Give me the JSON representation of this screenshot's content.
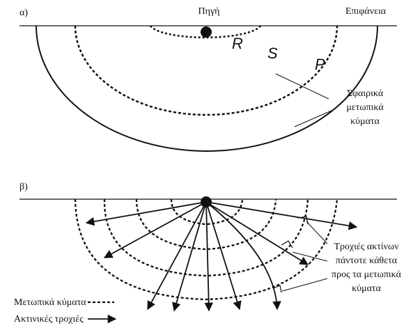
{
  "panel_a": {
    "label": "α)",
    "source": "Πηγή",
    "surface": "Επιφάνεια",
    "waves": [
      "R",
      "S",
      "P"
    ],
    "note": [
      "Σφαιρικά",
      "μετωπικά",
      "κύματα"
    ]
  },
  "panel_b": {
    "label": "β)",
    "note": [
      "Τροχιές ακτίνων",
      "πάντοτε κάθετα",
      "προς τα μετωπικά",
      "κύματα"
    ],
    "legend": [
      "Μετωπικά κύματα",
      "Ακτινικές τροχιές"
    ]
  }
}
